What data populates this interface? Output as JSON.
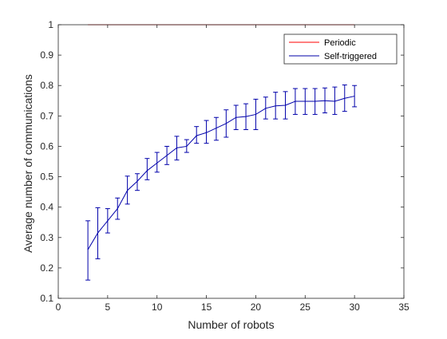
{
  "chart_data": {
    "type": "line",
    "title": "",
    "xlabel": "Number of robots",
    "ylabel": "Average number of communications",
    "xlim": [
      0,
      35
    ],
    "ylim": [
      0.1,
      1
    ],
    "xticks": [
      0,
      5,
      10,
      15,
      20,
      25,
      30,
      35
    ],
    "yticks": [
      0.1,
      0.2,
      0.3,
      0.4,
      0.5,
      0.6,
      0.7,
      0.8,
      0.9,
      1
    ],
    "grid": false,
    "legend": {
      "position": "top-right"
    },
    "series": [
      {
        "name": "Periodic",
        "color": "#ff0000",
        "x": [
          3,
          30
        ],
        "y": [
          1,
          1
        ]
      },
      {
        "name": "Self-triggered",
        "color": "#0000aa",
        "x": [
          3,
          4,
          5,
          6,
          7,
          8,
          9,
          10,
          11,
          12,
          13,
          14,
          15,
          16,
          17,
          18,
          19,
          20,
          21,
          22,
          23,
          24,
          25,
          26,
          27,
          28,
          29,
          30
        ],
        "y": [
          0.26,
          0.315,
          0.355,
          0.395,
          0.455,
          0.485,
          0.52,
          0.545,
          0.57,
          0.595,
          0.6,
          0.635,
          0.645,
          0.66,
          0.675,
          0.695,
          0.698,
          0.705,
          0.725,
          0.733,
          0.735,
          0.748,
          0.748,
          0.748,
          0.75,
          0.748,
          0.758,
          0.765
        ],
        "err_low": [
          0.16,
          0.23,
          0.315,
          0.36,
          0.41,
          0.455,
          0.49,
          0.515,
          0.54,
          0.555,
          0.58,
          0.61,
          0.61,
          0.62,
          0.63,
          0.655,
          0.655,
          0.655,
          0.69,
          0.69,
          0.69,
          0.705,
          0.705,
          0.705,
          0.71,
          0.705,
          0.715,
          0.73
        ],
        "err_high": [
          0.355,
          0.398,
          0.395,
          0.43,
          0.502,
          0.51,
          0.56,
          0.58,
          0.6,
          0.633,
          0.622,
          0.665,
          0.685,
          0.695,
          0.72,
          0.735,
          0.74,
          0.755,
          0.762,
          0.778,
          0.78,
          0.79,
          0.79,
          0.79,
          0.792,
          0.795,
          0.802,
          0.8
        ]
      }
    ]
  }
}
